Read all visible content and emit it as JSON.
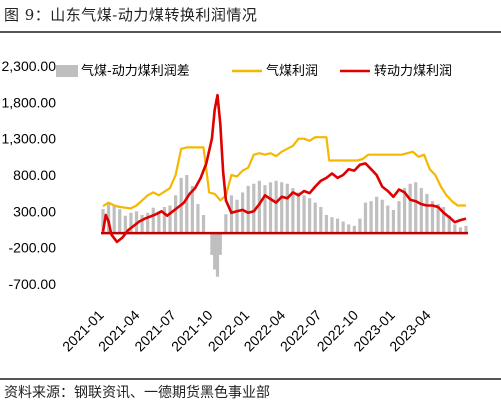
{
  "figure_title": "图 9：山东气煤-动力煤转换利润情况",
  "source_note": "资料来源：钢联资讯、一德期货黑色事业部",
  "colors": {
    "spread": "#bfbfbf",
    "gas_coal_profit": "#f5b800",
    "conversion_profit": "#e00000",
    "zero_line": "#c00000"
  },
  "chart_data": {
    "type": "line",
    "y_ticks": [
      "2,300.00",
      "1,800.00",
      "1,300.00",
      "800.00",
      "300.00",
      "-200.00",
      "-700.00"
    ],
    "ylim": [
      -700,
      2300
    ],
    "x_ticks": [
      "2021-01",
      "2021-04",
      "2021-07",
      "2021-10",
      "2022-01",
      "2022-04",
      "2022-07",
      "2022-10",
      "2023-01",
      "2023-04"
    ],
    "legend_position": "top",
    "series": [
      {
        "name": "气煤-动力煤利润差",
        "type": "bar",
        "points": [
          [
            "2020-12-28",
            330
          ],
          [
            "2021-01-11",
            420
          ],
          [
            "2021-01-25",
            380
          ],
          [
            "2021-02-08",
            330
          ],
          [
            "2021-02-22",
            240
          ],
          [
            "2021-03-08",
            280
          ],
          [
            "2021-03-22",
            300
          ],
          [
            "2021-04-05",
            250
          ],
          [
            "2021-04-19",
            280
          ],
          [
            "2021-05-03",
            350
          ],
          [
            "2021-05-17",
            300
          ],
          [
            "2021-05-31",
            360
          ],
          [
            "2021-06-14",
            380
          ],
          [
            "2021-06-28",
            520
          ],
          [
            "2021-07-12",
            760
          ],
          [
            "2021-07-26",
            800
          ],
          [
            "2021-08-09",
            650
          ],
          [
            "2021-08-23",
            400
          ],
          [
            "2021-09-06",
            250
          ],
          [
            "2021-09-20",
            0
          ],
          [
            "2021-09-27",
            -300
          ],
          [
            "2021-10-04",
            -500
          ],
          [
            "2021-10-11",
            -600
          ],
          [
            "2021-10-18",
            -300
          ],
          [
            "2021-11-01",
            260
          ],
          [
            "2021-11-15",
            520
          ],
          [
            "2021-11-29",
            460
          ],
          [
            "2021-12-13",
            560
          ],
          [
            "2021-12-27",
            650
          ],
          [
            "2022-01-10",
            680
          ],
          [
            "2022-01-24",
            720
          ],
          [
            "2022-02-07",
            660
          ],
          [
            "2022-02-21",
            700
          ],
          [
            "2022-03-07",
            720
          ],
          [
            "2022-03-21",
            700
          ],
          [
            "2022-04-04",
            680
          ],
          [
            "2022-04-18",
            620
          ],
          [
            "2022-05-02",
            560
          ],
          [
            "2022-05-16",
            520
          ],
          [
            "2022-05-30",
            480
          ],
          [
            "2022-06-13",
            420
          ],
          [
            "2022-06-27",
            360
          ],
          [
            "2022-07-11",
            250
          ],
          [
            "2022-07-25",
            220
          ],
          [
            "2022-08-08",
            200
          ],
          [
            "2022-08-22",
            160
          ],
          [
            "2022-09-05",
            120
          ],
          [
            "2022-09-19",
            100
          ],
          [
            "2022-10-03",
            200
          ],
          [
            "2022-10-17",
            420
          ],
          [
            "2022-10-31",
            440
          ],
          [
            "2022-11-14",
            500
          ],
          [
            "2022-11-28",
            460
          ],
          [
            "2022-12-12",
            380
          ],
          [
            "2022-12-26",
            320
          ],
          [
            "2023-01-09",
            440
          ],
          [
            "2023-01-23",
            620
          ],
          [
            "2023-02-06",
            680
          ],
          [
            "2023-02-20",
            700
          ],
          [
            "2023-03-06",
            620
          ],
          [
            "2023-03-20",
            540
          ],
          [
            "2023-04-03",
            440
          ],
          [
            "2023-04-17",
            400
          ],
          [
            "2023-05-01",
            360
          ],
          [
            "2023-05-15",
            240
          ],
          [
            "2023-05-29",
            120
          ],
          [
            "2023-06-12",
            80
          ],
          [
            "2023-06-26",
            100
          ]
        ]
      },
      {
        "name": "气煤利润",
        "type": "line",
        "points": [
          [
            "2020-12-28",
            370
          ],
          [
            "2021-01-11",
            420
          ],
          [
            "2021-01-25",
            380
          ],
          [
            "2021-02-08",
            360
          ],
          [
            "2021-02-22",
            350
          ],
          [
            "2021-03-08",
            340
          ],
          [
            "2021-03-22",
            380
          ],
          [
            "2021-04-05",
            450
          ],
          [
            "2021-04-19",
            520
          ],
          [
            "2021-05-03",
            560
          ],
          [
            "2021-05-17",
            520
          ],
          [
            "2021-05-31",
            570
          ],
          [
            "2021-06-14",
            620
          ],
          [
            "2021-06-28",
            800
          ],
          [
            "2021-07-12",
            1160
          ],
          [
            "2021-07-26",
            1180
          ],
          [
            "2021-08-09",
            1180
          ],
          [
            "2021-08-23",
            1180
          ],
          [
            "2021-09-06",
            1180
          ],
          [
            "2021-09-13",
            880
          ],
          [
            "2021-09-20",
            560
          ],
          [
            "2021-10-04",
            540
          ],
          [
            "2021-10-18",
            450
          ],
          [
            "2021-11-01",
            520
          ],
          [
            "2021-11-15",
            800
          ],
          [
            "2021-11-29",
            780
          ],
          [
            "2021-12-13",
            860
          ],
          [
            "2021-12-27",
            900
          ],
          [
            "2022-01-10",
            1080
          ],
          [
            "2022-01-24",
            1100
          ],
          [
            "2022-02-07",
            1080
          ],
          [
            "2022-02-21",
            1100
          ],
          [
            "2022-03-07",
            1060
          ],
          [
            "2022-03-21",
            1120
          ],
          [
            "2022-04-04",
            1160
          ],
          [
            "2022-04-18",
            1200
          ],
          [
            "2022-05-02",
            1300
          ],
          [
            "2022-05-16",
            1300
          ],
          [
            "2022-05-30",
            1270
          ],
          [
            "2022-06-13",
            1320
          ],
          [
            "2022-06-27",
            1320
          ],
          [
            "2022-07-11",
            1320
          ],
          [
            "2022-07-18",
            1000
          ],
          [
            "2022-08-01",
            1000
          ],
          [
            "2022-08-15",
            1000
          ],
          [
            "2022-08-29",
            1000
          ],
          [
            "2022-09-12",
            1000
          ],
          [
            "2022-09-26",
            1000
          ],
          [
            "2022-10-10",
            1020
          ],
          [
            "2022-10-24",
            1080
          ],
          [
            "2022-11-07",
            1080
          ],
          [
            "2022-11-21",
            1080
          ],
          [
            "2022-12-05",
            1080
          ],
          [
            "2022-12-19",
            1080
          ],
          [
            "2023-01-02",
            1080
          ],
          [
            "2023-01-16",
            1080
          ],
          [
            "2023-01-30",
            1100
          ],
          [
            "2023-02-13",
            1120
          ],
          [
            "2023-02-27",
            1050
          ],
          [
            "2023-03-13",
            1080
          ],
          [
            "2023-03-27",
            880
          ],
          [
            "2023-04-10",
            800
          ],
          [
            "2023-04-24",
            640
          ],
          [
            "2023-05-08",
            520
          ],
          [
            "2023-05-22",
            440
          ],
          [
            "2023-06-05",
            380
          ],
          [
            "2023-06-19",
            380
          ],
          [
            "2023-06-26",
            380
          ]
        ]
      },
      {
        "name": "转动力煤利润",
        "type": "line",
        "points": [
          [
            "2020-12-28",
            20
          ],
          [
            "2021-01-04",
            250
          ],
          [
            "2021-01-11",
            160
          ],
          [
            "2021-01-18",
            -20
          ],
          [
            "2021-02-01",
            -120
          ],
          [
            "2021-02-15",
            -60
          ],
          [
            "2021-03-01",
            40
          ],
          [
            "2021-03-15",
            100
          ],
          [
            "2021-03-29",
            160
          ],
          [
            "2021-04-12",
            200
          ],
          [
            "2021-04-26",
            230
          ],
          [
            "2021-05-10",
            260
          ],
          [
            "2021-05-24",
            300
          ],
          [
            "2021-06-07",
            240
          ],
          [
            "2021-06-21",
            300
          ],
          [
            "2021-07-05",
            360
          ],
          [
            "2021-07-19",
            420
          ],
          [
            "2021-08-02",
            540
          ],
          [
            "2021-08-16",
            620
          ],
          [
            "2021-08-30",
            760
          ],
          [
            "2021-09-13",
            960
          ],
          [
            "2021-09-27",
            1300
          ],
          [
            "2021-10-04",
            1700
          ],
          [
            "2021-10-11",
            1900
          ],
          [
            "2021-10-18",
            1500
          ],
          [
            "2021-10-25",
            850
          ],
          [
            "2021-11-01",
            450
          ],
          [
            "2021-11-15",
            280
          ],
          [
            "2021-11-29",
            300
          ],
          [
            "2021-12-13",
            320
          ],
          [
            "2021-12-27",
            280
          ],
          [
            "2022-01-10",
            300
          ],
          [
            "2022-01-24",
            400
          ],
          [
            "2022-02-07",
            520
          ],
          [
            "2022-02-21",
            470
          ],
          [
            "2022-03-07",
            420
          ],
          [
            "2022-03-21",
            500
          ],
          [
            "2022-04-04",
            480
          ],
          [
            "2022-04-18",
            560
          ],
          [
            "2022-05-02",
            520
          ],
          [
            "2022-05-16",
            580
          ],
          [
            "2022-05-30",
            550
          ],
          [
            "2022-06-13",
            640
          ],
          [
            "2022-06-27",
            720
          ],
          [
            "2022-07-11",
            760
          ],
          [
            "2022-07-25",
            820
          ],
          [
            "2022-08-08",
            760
          ],
          [
            "2022-08-22",
            800
          ],
          [
            "2022-09-05",
            880
          ],
          [
            "2022-09-19",
            860
          ],
          [
            "2022-10-03",
            940
          ],
          [
            "2022-10-17",
            960
          ],
          [
            "2022-10-31",
            880
          ],
          [
            "2022-11-14",
            800
          ],
          [
            "2022-11-28",
            640
          ],
          [
            "2022-12-12",
            580
          ],
          [
            "2022-12-26",
            500
          ],
          [
            "2023-01-09",
            600
          ],
          [
            "2023-01-23",
            560
          ],
          [
            "2023-02-06",
            460
          ],
          [
            "2023-02-20",
            440
          ],
          [
            "2023-03-06",
            400
          ],
          [
            "2023-03-20",
            380
          ],
          [
            "2023-04-03",
            380
          ],
          [
            "2023-04-17",
            360
          ],
          [
            "2023-05-01",
            280
          ],
          [
            "2023-05-15",
            220
          ],
          [
            "2023-05-29",
            150
          ],
          [
            "2023-06-12",
            180
          ],
          [
            "2023-06-26",
            200
          ]
        ]
      }
    ]
  }
}
